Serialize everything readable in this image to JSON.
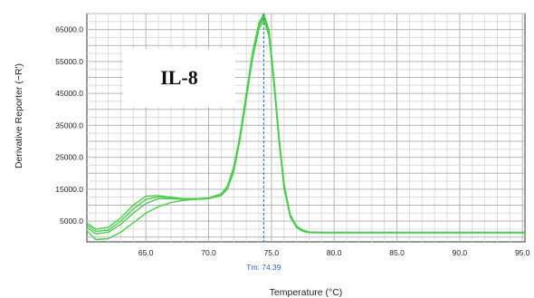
{
  "chart_data": {
    "type": "line",
    "title": "IL-8",
    "xlabel": "Temperature (°C)",
    "ylabel": "Derivative Reporter (−R')",
    "xlim": [
      60.3,
      95.2
    ],
    "ylim": [
      -1500,
      70000
    ],
    "x_ticks": [
      65.0,
      70.0,
      75.0,
      80.0,
      85.0,
      90.0,
      95.0
    ],
    "x_tick_labels": [
      "65.0",
      "70.0",
      "75.0",
      "80.0",
      "85.0",
      "90.0",
      "95.0"
    ],
    "y_ticks": [
      5000,
      15000,
      25000,
      35000,
      45000,
      55000,
      65000
    ],
    "y_tick_labels": [
      "5000.0",
      "15000.0",
      "25000.0",
      "35000.0",
      "45000.0",
      "55000.0",
      "65000.0"
    ],
    "grid": true,
    "tm": {
      "x": 74.39,
      "label": "Tm: 74.39"
    },
    "line_color": "#4ccc4c",
    "tm_color": "#2a66c8",
    "series": [
      {
        "x": [
          60.3,
          61.0,
          62.0,
          63.0,
          64.0,
          65.0,
          66.0,
          67.0,
          68.0,
          69.0,
          70.0,
          71.0,
          71.5,
          72.0,
          72.5,
          73.0,
          73.5,
          74.0,
          74.4,
          74.8,
          75.2,
          75.6,
          76.0,
          76.5,
          77.0,
          77.5,
          78.0,
          79.0,
          80.0,
          85.0,
          90.0,
          95.2
        ],
        "y": [
          4500,
          2500,
          3000,
          6000,
          10000,
          12800,
          13000,
          12500,
          12000,
          12000,
          12300,
          13500,
          16000,
          22000,
          32000,
          45000,
          58000,
          67000,
          70000,
          65000,
          50000,
          32000,
          17000,
          7000,
          3500,
          2200,
          1600,
          1500,
          1500,
          1500,
          1500,
          1500
        ]
      },
      {
        "x": [
          60.3,
          61.0,
          62.0,
          63.0,
          64.0,
          65.0,
          66.0,
          67.0,
          68.0,
          69.0,
          70.0,
          71.0,
          71.5,
          72.0,
          72.5,
          73.0,
          73.5,
          74.0,
          74.4,
          74.8,
          75.2,
          75.6,
          76.0,
          76.5,
          77.0,
          77.5,
          78.0,
          79.0,
          80.0,
          85.0,
          90.0,
          95.2
        ],
        "y": [
          3000,
          1000,
          1500,
          4000,
          7500,
          10500,
          12000,
          12000,
          11800,
          11800,
          12100,
          13200,
          15500,
          21000,
          31000,
          44000,
          57000,
          66000,
          69000,
          64000,
          49000,
          31000,
          16000,
          6500,
          3200,
          2000,
          1500,
          1400,
          1400,
          1400,
          1400,
          1400
        ]
      },
      {
        "x": [
          60.3,
          61.0,
          62.0,
          63.0,
          64.0,
          65.0,
          66.0,
          67.0,
          68.0,
          69.0,
          70.0,
          71.0,
          71.5,
          72.0,
          72.5,
          73.0,
          73.5,
          74.0,
          74.4,
          74.8,
          75.2,
          75.6,
          76.0,
          76.5,
          77.0,
          77.5,
          78.0,
          79.0,
          80.0,
          85.0,
          90.0,
          95.2
        ],
        "y": [
          2000,
          -800,
          -500,
          1500,
          4500,
          7500,
          9500,
          10800,
          11500,
          11800,
          12000,
          13000,
          15000,
          20500,
          30500,
          43000,
          56000,
          65000,
          68000,
          63000,
          48000,
          30000,
          15500,
          6200,
          3000,
          1800,
          1400,
          1300,
          1300,
          1300,
          1300,
          1300
        ]
      },
      {
        "x": [
          60.3,
          61.0,
          62.0,
          63.0,
          64.0,
          65.0,
          66.0,
          67.0,
          68.0,
          69.0,
          70.0,
          71.0,
          71.5,
          72.0,
          72.5,
          73.0,
          73.5,
          74.0,
          74.4,
          74.8,
          75.2,
          75.6,
          76.0,
          76.5,
          77.0,
          77.5,
          78.0,
          79.0,
          80.0,
          85.0,
          90.0,
          95.2
        ],
        "y": [
          3800,
          1800,
          2200,
          5000,
          8800,
          11800,
          12600,
          12300,
          12000,
          12000,
          12200,
          13300,
          15800,
          21500,
          31500,
          44500,
          57500,
          66500,
          69500,
          64500,
          49500,
          31500,
          16500,
          6800,
          3300,
          2100,
          1500,
          1450,
          1450,
          1450,
          1450,
          1450
        ]
      }
    ]
  }
}
